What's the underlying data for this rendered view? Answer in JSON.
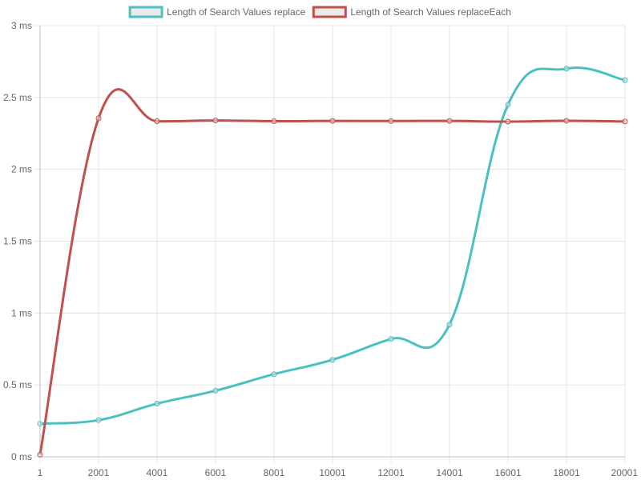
{
  "chart_data": {
    "type": "line",
    "categories": [
      "1",
      "2001",
      "4001",
      "6001",
      "8001",
      "10001",
      "12001",
      "14001",
      "16001",
      "18001",
      "20001"
    ],
    "x": [
      1,
      2001,
      4001,
      6001,
      8001,
      10001,
      12001,
      14001,
      16001,
      18001,
      20001
    ],
    "ylim": [
      0,
      3
    ],
    "y_ticks": [
      0,
      0.5,
      1,
      1.5,
      2,
      2.5,
      3
    ],
    "y_tick_labels": [
      "0 ms",
      "0.5 ms",
      "1 ms",
      "1.5 ms",
      "2 ms",
      "2.5 ms",
      "3 ms"
    ],
    "grid": true,
    "legend_position": "top",
    "series": [
      {
        "name": "Length of Search Values replace",
        "color": "#4bc0c0",
        "values": [
          0.23,
          0.255,
          0.37,
          0.46,
          0.575,
          0.675,
          0.82,
          0.92,
          2.45,
          2.7,
          2.62
        ]
      },
      {
        "name": "Length of Search Values replaceEach",
        "color": "#c0504d",
        "values": [
          0.015,
          2.355,
          2.335,
          2.34,
          2.335,
          2.337,
          2.336,
          2.337,
          2.332,
          2.338,
          2.333
        ]
      }
    ]
  }
}
